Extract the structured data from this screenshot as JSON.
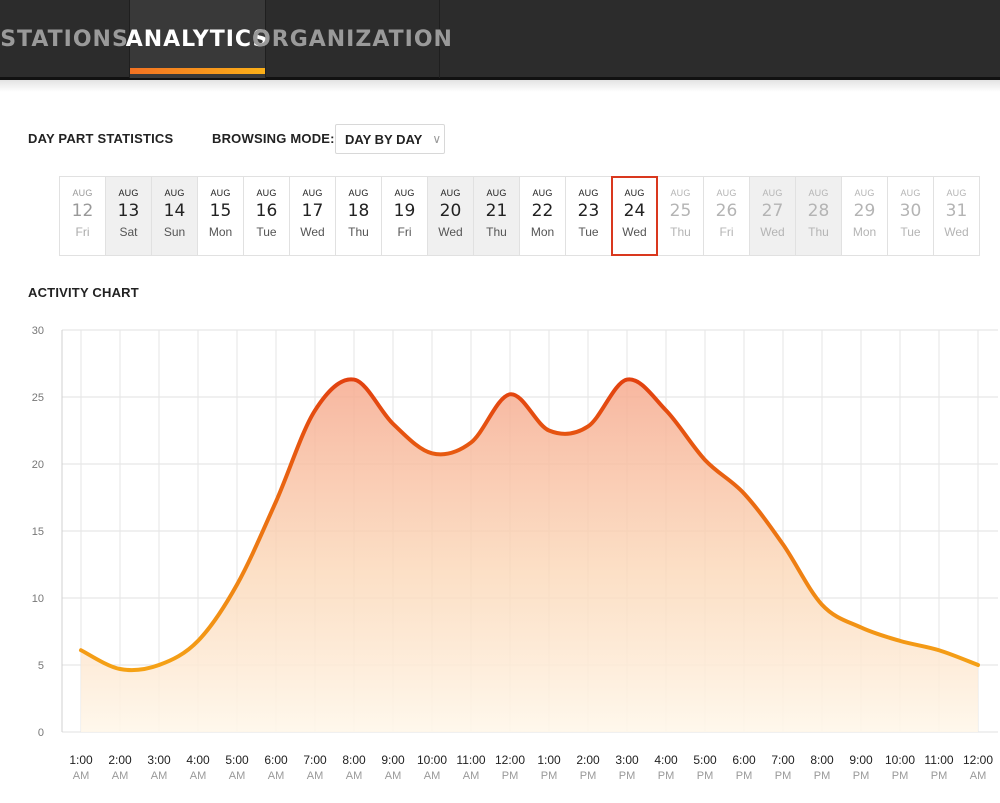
{
  "nav": {
    "tabs": [
      {
        "label": "STATIONS",
        "active": false
      },
      {
        "label": "ANALYTICS",
        "active": true
      },
      {
        "label": "ORGANIZATION",
        "active": false
      }
    ],
    "accent_gradient": [
      "#f37222",
      "#fbb018"
    ]
  },
  "controls": {
    "day_part_label": "DAY PART STATISTICS",
    "browsing_mode_label": "BROWSING MODE:",
    "browsing_mode_value": "DAY BY DAY"
  },
  "dates": [
    {
      "month": "AUG",
      "day": "12",
      "dow": "Fri",
      "state": "past"
    },
    {
      "month": "AUG",
      "day": "13",
      "dow": "Sat",
      "state": "weekend"
    },
    {
      "month": "AUG",
      "day": "14",
      "dow": "Sun",
      "state": "weekend"
    },
    {
      "month": "AUG",
      "day": "15",
      "dow": "Mon",
      "state": "normal"
    },
    {
      "month": "AUG",
      "day": "16",
      "dow": "Tue",
      "state": "normal"
    },
    {
      "month": "AUG",
      "day": "17",
      "dow": "Wed",
      "state": "normal"
    },
    {
      "month": "AUG",
      "day": "18",
      "dow": "Thu",
      "state": "normal"
    },
    {
      "month": "AUG",
      "day": "19",
      "dow": "Fri",
      "state": "normal"
    },
    {
      "month": "AUG",
      "day": "20",
      "dow": "Wed",
      "state": "weekend"
    },
    {
      "month": "AUG",
      "day": "21",
      "dow": "Thu",
      "state": "weekend"
    },
    {
      "month": "AUG",
      "day": "22",
      "dow": "Mon",
      "state": "normal"
    },
    {
      "month": "AUG",
      "day": "23",
      "dow": "Tue",
      "state": "normal"
    },
    {
      "month": "AUG",
      "day": "24",
      "dow": "Wed",
      "state": "selected"
    },
    {
      "month": "AUG",
      "day": "25",
      "dow": "Thu",
      "state": "future"
    },
    {
      "month": "AUG",
      "day": "26",
      "dow": "Fri",
      "state": "future"
    },
    {
      "month": "AUG",
      "day": "27",
      "dow": "Wed",
      "state": "future-weekend"
    },
    {
      "month": "AUG",
      "day": "28",
      "dow": "Thu",
      "state": "future-weekend"
    },
    {
      "month": "AUG",
      "day": "29",
      "dow": "Mon",
      "state": "future"
    },
    {
      "month": "AUG",
      "day": "30",
      "dow": "Tue",
      "state": "future"
    },
    {
      "month": "AUG",
      "day": "31",
      "dow": "Wed",
      "state": "future"
    }
  ],
  "chart_data": {
    "type": "area",
    "title": "ACTIVITY CHART",
    "x": [
      "1:00 AM",
      "2:00 AM",
      "3:00 AM",
      "4:00 AM",
      "5:00 AM",
      "6:00 AM",
      "7:00 AM",
      "8:00 AM",
      "9:00 AM",
      "10:00 AM",
      "11:00 AM",
      "12:00 PM",
      "1:00 PM",
      "2:00 PM",
      "3:00 PM",
      "4:00 PM",
      "5:00 PM",
      "6:00 PM",
      "7:00 PM",
      "8:00 PM",
      "9:00 PM",
      "10:00 PM",
      "11:00 PM",
      "12:00 AM"
    ],
    "x_time": [
      "1:00",
      "2:00",
      "3:00",
      "4:00",
      "5:00",
      "6:00",
      "7:00",
      "8:00",
      "9:00",
      "10:00",
      "11:00",
      "12:00",
      "1:00",
      "2:00",
      "3:00",
      "4:00",
      "5:00",
      "6:00",
      "7:00",
      "8:00",
      "9:00",
      "10:00",
      "11:00",
      "12:00"
    ],
    "x_ampm": [
      "AM",
      "AM",
      "AM",
      "AM",
      "AM",
      "AM",
      "AM",
      "AM",
      "AM",
      "AM",
      "AM",
      "PM",
      "PM",
      "PM",
      "PM",
      "PM",
      "PM",
      "PM",
      "PM",
      "PM",
      "PM",
      "PM",
      "PM",
      "AM"
    ],
    "series": [
      {
        "values": [
          6.1,
          4.7,
          5.0,
          6.8,
          11.0,
          17.2,
          24.0,
          26.3,
          23.0,
          20.8,
          21.6,
          25.2,
          22.5,
          22.8,
          26.3,
          24.0,
          20.3,
          17.8,
          14.0,
          9.5,
          7.8,
          6.8,
          6.1,
          5.0
        ]
      }
    ],
    "ylim": [
      0,
      30
    ],
    "yticks": [
      0,
      5,
      10,
      15,
      20,
      25,
      30
    ],
    "grid": true,
    "colors": {
      "line_start": "#f5a216",
      "line_peak": "#e2410f",
      "fill_top": "#f6aa8f",
      "fill_bottom": "#fff7ea"
    }
  }
}
